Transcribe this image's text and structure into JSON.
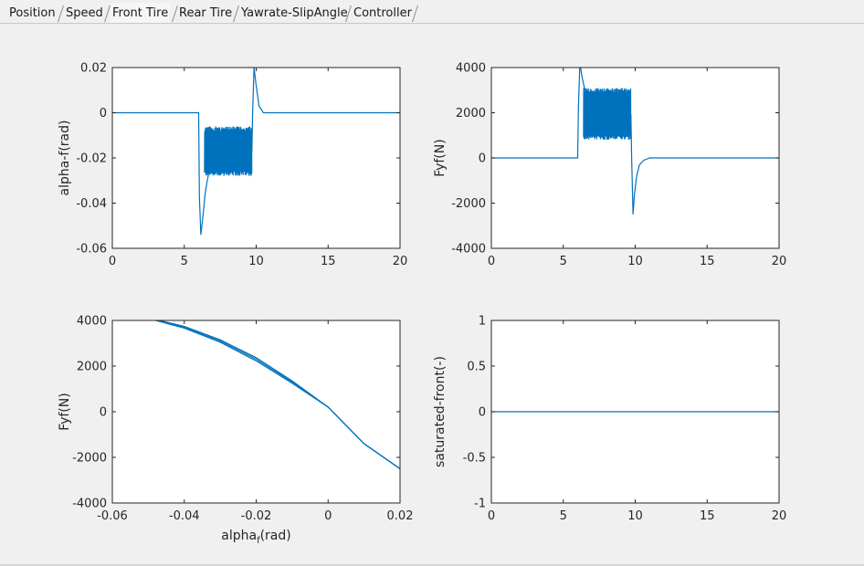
{
  "tabs": [
    {
      "label": "Position",
      "selected": false
    },
    {
      "label": "Speed",
      "selected": false
    },
    {
      "label": "Front Tire",
      "selected": true
    },
    {
      "label": "Rear Tire",
      "selected": false
    },
    {
      "label": "Yawrate-SlipAngle",
      "selected": false
    },
    {
      "label": "Controller",
      "selected": false
    }
  ],
  "colors": {
    "line": "#0072bd",
    "axes_bg": "#ffffff",
    "figure_bg": "#f0f0f0",
    "axis_color": "#262626"
  },
  "chart_data": [
    {
      "type": "line",
      "title": "",
      "xlabel": "",
      "ylabel": "alpha-f(rad)",
      "xlim": [
        0,
        20
      ],
      "ylim": [
        -0.06,
        0.02
      ],
      "xticks": [
        "0",
        "5",
        "10",
        "15",
        "20"
      ],
      "yticks": [
        "-0.06",
        "-0.04",
        "-0.02",
        "0",
        "0.02"
      ],
      "grid": false,
      "series": [
        {
          "x": [
            0,
            6.0,
            6.05,
            6.15,
            6.3,
            6.45,
            6.6,
            6.8,
            7.2,
            8.0,
            9.0,
            9.7,
            9.75,
            9.85,
            10.0,
            10.2,
            10.5,
            20
          ],
          "y": [
            0,
            0,
            -0.037,
            -0.054,
            -0.046,
            -0.036,
            -0.03,
            -0.024,
            -0.018,
            -0.017,
            -0.017,
            -0.017,
            0,
            0.02,
            0.012,
            0.003,
            0,
            0
          ]
        }
      ],
      "oscillation_band": {
        "x_start": 6.4,
        "x_end": 9.7,
        "y_min": -0.028,
        "y_max": -0.006
      }
    },
    {
      "type": "line",
      "title": "",
      "xlabel": "",
      "ylabel": "Fyf(N)",
      "xlim": [
        0,
        20
      ],
      "ylim": [
        -4000,
        4000
      ],
      "xticks": [
        "0",
        "5",
        "10",
        "15",
        "20"
      ],
      "yticks": [
        "-4000",
        "-2000",
        "0",
        "2000",
        "4000"
      ],
      "grid": false,
      "series": [
        {
          "x": [
            0,
            6.0,
            6.05,
            6.15,
            6.3,
            6.5,
            6.8,
            7.2,
            8.0,
            9.0,
            9.7,
            9.75,
            9.85,
            9.95,
            10.1,
            10.3,
            10.6,
            11.0,
            20
          ],
          "y": [
            0,
            0,
            2200,
            4200,
            3600,
            3000,
            2500,
            2000,
            1900,
            1900,
            1900,
            0,
            -2500,
            -1600,
            -800,
            -300,
            -100,
            0,
            0
          ]
        }
      ],
      "oscillation_band": {
        "x_start": 6.4,
        "x_end": 9.7,
        "y_min": 800,
        "y_max": 3100
      }
    },
    {
      "type": "line",
      "title": "",
      "xlabel": "alpha_f(rad)",
      "ylabel": "Fyf(N)",
      "xlim": [
        -0.06,
        0.02
      ],
      "ylim": [
        -4000,
        4000
      ],
      "xticks": [
        "-0.06",
        "-0.04",
        "-0.02",
        "0",
        "0.02"
      ],
      "yticks": [
        "-4000",
        "-2000",
        "0",
        "2000",
        "4000"
      ],
      "grid": false,
      "series": [
        {
          "x": [
            -0.055,
            -0.05,
            -0.04,
            -0.03,
            -0.02,
            -0.01,
            0,
            0.01,
            0.02
          ],
          "y": [
            4250,
            4100,
            3700,
            3100,
            2300,
            1300,
            200,
            -1400,
            -2500
          ]
        }
      ],
      "band_half_width": 70
    },
    {
      "type": "line",
      "title": "",
      "xlabel": "",
      "ylabel": "saturated-front(-)",
      "xlim": [
        0,
        20
      ],
      "ylim": [
        -1,
        1
      ],
      "xticks": [
        "0",
        "5",
        "10",
        "15",
        "20"
      ],
      "yticks": [
        "-1",
        "-0.5",
        "0",
        "0.5",
        "1"
      ],
      "grid": false,
      "series": [
        {
          "x": [
            0,
            20
          ],
          "y": [
            0,
            0
          ]
        }
      ]
    }
  ]
}
